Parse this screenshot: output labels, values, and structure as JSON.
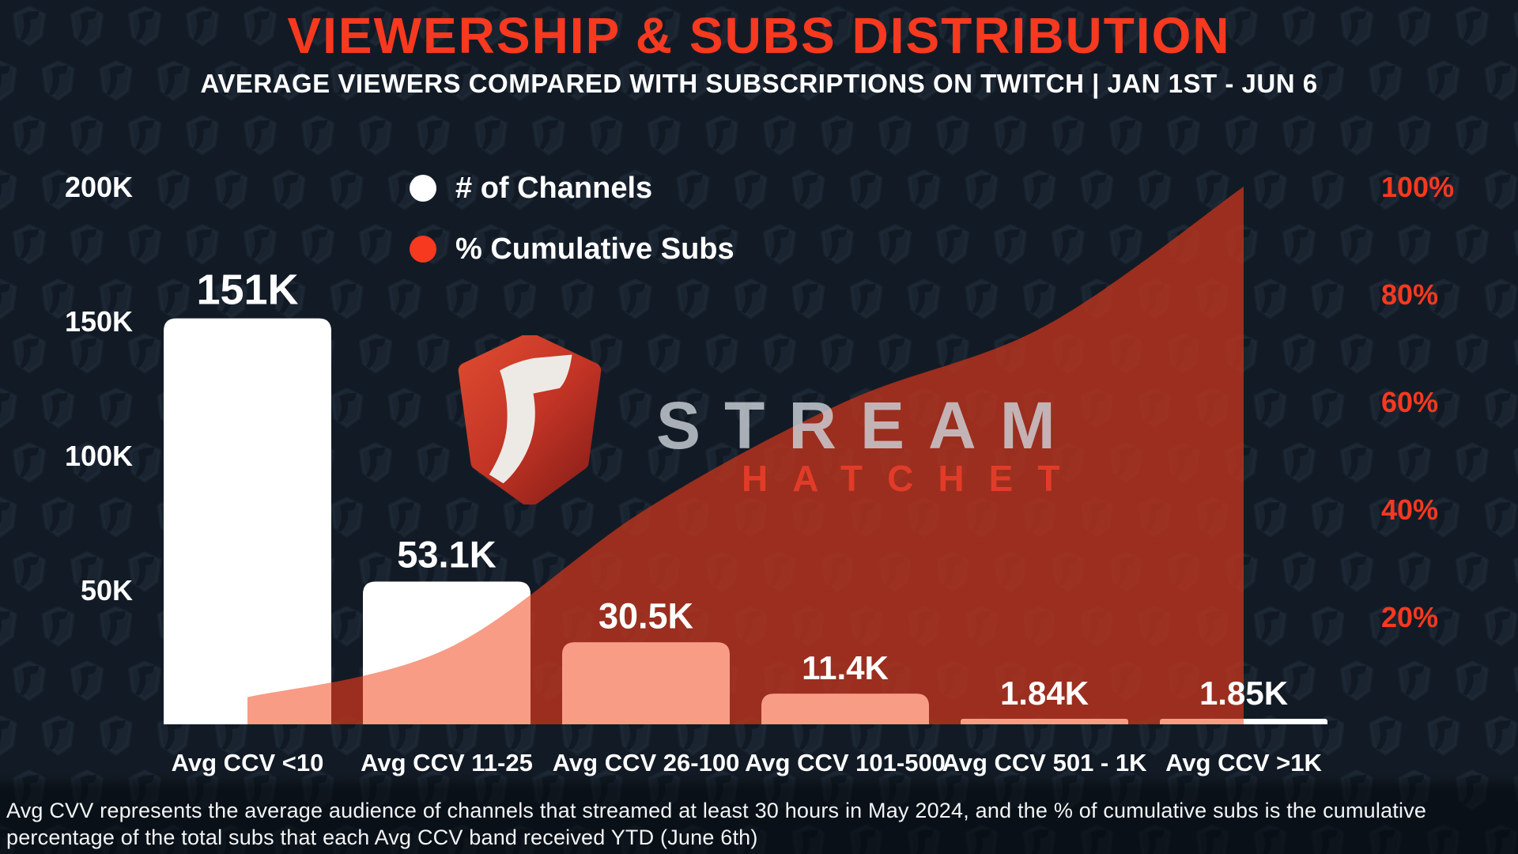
{
  "header": {
    "title": "VIEWERSHIP & SUBS DISTRIBUTION",
    "subtitle": "AVERAGE VIEWERS COMPARED WITH SUBSCRIPTIONS ON TWITCH | JAN 1ST - JUN 6"
  },
  "legend": {
    "items": [
      {
        "label": "# of Channels",
        "color": "#FFFFFF"
      },
      {
        "label": "% Cumulative Subs",
        "color": "#F6391F"
      }
    ]
  },
  "watermark": {
    "brand_top": "STREAM",
    "brand_bottom": "HATCHET",
    "shield_icon": "hatchet-shield-icon"
  },
  "footer": {
    "lines": [
      "Avg CVV represents the average audience of channels that streamed at least 30 hours in May 2024, and the % of cumulative subs is the cumulative",
      "percentage of the total subs that each Avg CCV band received YTD (June 6th)"
    ]
  },
  "colors": {
    "background": "#121B25",
    "accent_red": "#F6391F",
    "bar_white": "#FFFFFF",
    "area_red_over_dark": "#9C2E20",
    "area_red_over_bar": "#F89C86",
    "area_fill": "#BA331F",
    "area_fill_opacity": 0.82,
    "pattern_shield": "#222E3C"
  },
  "chart_data": {
    "type": "combo bar+area",
    "title": "VIEWERSHIP & SUBS DISTRIBUTION",
    "categories": [
      "Avg CCV <10",
      "Avg CCV 11-25",
      "Avg CCV 26-100",
      "Avg CCV 101-500",
      "Avg CCV 501 - 1K",
      "Avg CCV >1K"
    ],
    "series": [
      {
        "name": "# of Channels",
        "type": "bar",
        "axis": "left",
        "color": "#FFFFFF",
        "values": [
          151000,
          53100,
          30500,
          11400,
          1840,
          1850
        ],
        "value_labels": [
          "151K",
          "53.1K",
          "30.5K",
          "11.4K",
          "1.84K",
          "1.85K"
        ],
        "value_label_sizes": [
          54,
          47,
          45,
          42,
          42,
          42
        ]
      },
      {
        "name": "% Cumulative Subs",
        "type": "area",
        "axis": "right",
        "color": "#F23A24",
        "values": [
          5,
          14,
          40,
          60,
          74,
          100
        ]
      }
    ],
    "left_axis": {
      "ticks": [
        "200K",
        "150K",
        "100K",
        "50K"
      ],
      "values": [
        200000,
        150000,
        100000,
        50000
      ],
      "range": [
        0,
        200000
      ]
    },
    "right_axis": {
      "ticks": [
        "100%",
        "80%",
        "60%",
        "40%",
        "20%"
      ],
      "values": [
        100,
        80,
        60,
        40,
        20
      ],
      "range": [
        0,
        100
      ],
      "color": "#F6391F"
    },
    "grid": false,
    "legend_position": "top-left"
  }
}
